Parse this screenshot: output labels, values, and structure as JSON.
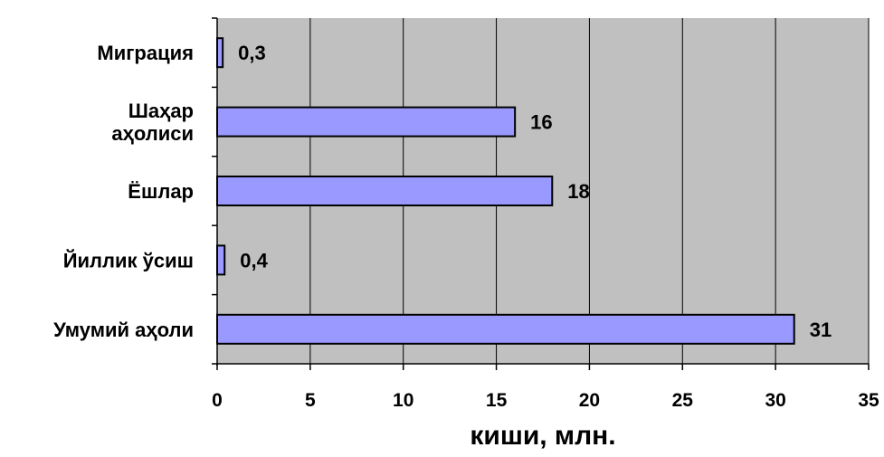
{
  "chart_data": {
    "type": "bar",
    "orientation": "horizontal",
    "categories": [
      [
        "Миграция"
      ],
      [
        "Шаҳар",
        "аҳолиси"
      ],
      [
        "Ёшлар"
      ],
      [
        "Йиллик ўсиш"
      ],
      [
        "Умумий аҳоли"
      ]
    ],
    "values": [
      0.3,
      16,
      18,
      0.4,
      31
    ],
    "data_labels": [
      "0,3",
      "16",
      "18",
      "0,4",
      "31"
    ],
    "xlabel": "киши, млн.",
    "ylabel": "",
    "title": "",
    "xlim": [
      0,
      35
    ],
    "xticks": [
      0,
      5,
      10,
      15,
      20,
      25,
      30,
      35
    ],
    "xtick_labels": [
      "0",
      "5",
      "10",
      "15",
      "20",
      "25",
      "30",
      "35"
    ],
    "grid": "vertical",
    "legend": "none",
    "colors": {
      "plot_background": "#c0c0c0",
      "bar_fill": "#9999ff",
      "bar_stroke": "#000000",
      "gridline": "#000000"
    }
  }
}
